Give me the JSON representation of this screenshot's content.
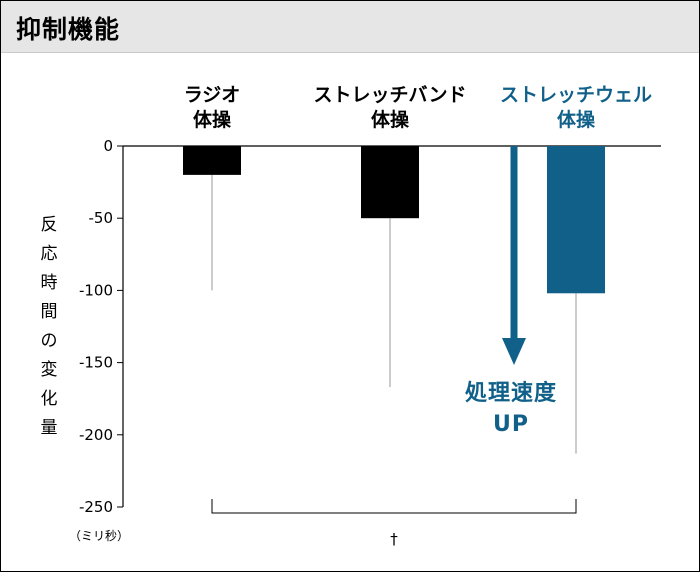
{
  "header": {
    "title": "抑制機能"
  },
  "chart_data": {
    "type": "bar",
    "categories": [
      {
        "lines": [
          "ラジオ",
          "体操"
        ],
        "highlight": false
      },
      {
        "lines": [
          "ストレッチバンド",
          "体操"
        ],
        "highlight": false
      },
      {
        "lines": [
          "ストレッチウェル",
          "体操"
        ],
        "highlight": true
      }
    ],
    "values": [
      -20,
      -50,
      -102
    ],
    "error_low": [
      -100,
      -167,
      -213
    ],
    "yticks": [
      0,
      -50,
      -100,
      -150,
      -200,
      -250
    ],
    "ylim": [
      -250,
      0
    ],
    "ylabel_chars": [
      "反",
      "応",
      "時",
      "間",
      "の",
      "変",
      "化",
      "量"
    ],
    "yunit": "（ミリ秒）",
    "annotation_lines": [
      "処理速度",
      "UP"
    ],
    "significance_mark": "†",
    "colors": {
      "normal": "#000000",
      "highlight": "#10608a",
      "error_bar": "#9a9a9a"
    }
  }
}
